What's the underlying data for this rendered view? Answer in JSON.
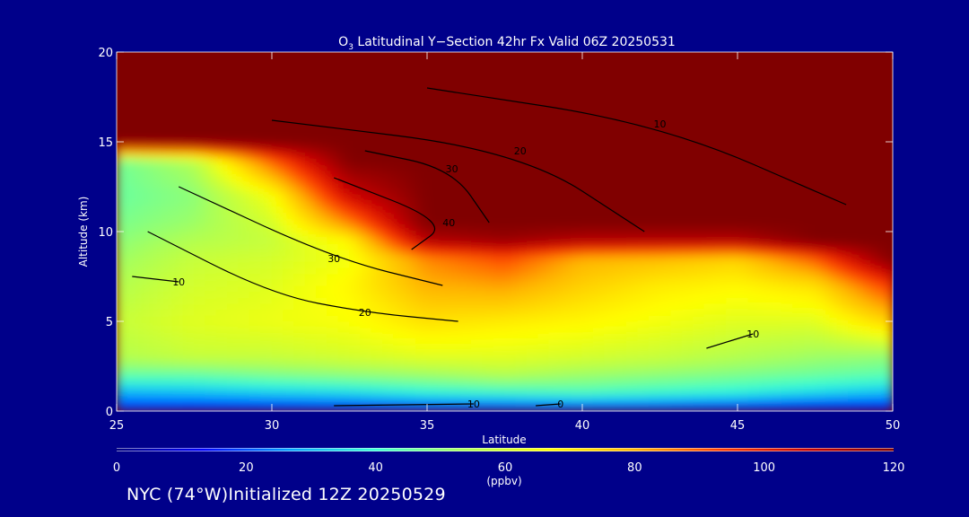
{
  "chart_data": {
    "type": "heatmap",
    "title": {
      "prefix": "O",
      "sub": "3",
      "rest": " Latitudinal Y−Section 42hr  Fx Valid 06Z 20250531"
    },
    "xlabel": "Latitude",
    "ylabel": "Altitude (km)",
    "xlim": [
      25,
      50
    ],
    "ylim": [
      0,
      20
    ],
    "xticks": [
      "25",
      "30",
      "35",
      "40",
      "45",
      "50"
    ],
    "yticks": [
      "0",
      "5",
      "10",
      "15",
      "20"
    ],
    "grid": false,
    "field": {
      "variable": "O3",
      "units": "ppbv",
      "x": [
        25,
        27.5,
        30,
        32.5,
        35,
        37.5,
        40,
        42.5,
        45,
        47.5,
        50
      ],
      "y": [
        0,
        1,
        2,
        3,
        5,
        7,
        8.5,
        9.5,
        10.5,
        12,
        14,
        15,
        20
      ],
      "values": [
        [
          15,
          12,
          12,
          12,
          12,
          12,
          12,
          12,
          10,
          8,
          8
        ],
        [
          28,
          30,
          32,
          34,
          38,
          40,
          42,
          40,
          38,
          34,
          30
        ],
        [
          45,
          45,
          48,
          50,
          52,
          55,
          52,
          50,
          48,
          46,
          44
        ],
        [
          55,
          58,
          58,
          60,
          62,
          62,
          60,
          58,
          55,
          52,
          50
        ],
        [
          58,
          62,
          64,
          66,
          72,
          70,
          68,
          65,
          62,
          62,
          75
        ],
        [
          55,
          60,
          62,
          68,
          80,
          82,
          75,
          70,
          68,
          72,
          95
        ],
        [
          52,
          58,
          60,
          65,
          85,
          92,
          80,
          78,
          75,
          90,
          120
        ],
        [
          50,
          55,
          58,
          68,
          110,
          115,
          110,
          110,
          110,
          120,
          120
        ],
        [
          48,
          52,
          60,
          85,
          120,
          120,
          120,
          120,
          120,
          120,
          120
        ],
        [
          46,
          50,
          65,
          105,
          120,
          120,
          120,
          120,
          120,
          120,
          120
        ],
        [
          47,
          55,
          90,
          120,
          120,
          120,
          120,
          120,
          120,
          120,
          120
        ],
        [
          120,
          120,
          120,
          120,
          120,
          120,
          120,
          120,
          120,
          120,
          120
        ],
        [
          120,
          120,
          120,
          120,
          120,
          120,
          120,
          120,
          120,
          120,
          120
        ]
      ]
    },
    "contours": [
      {
        "label": "0",
        "points": [
          [
            38.5,
            0.3
          ],
          [
            39.3,
            0.4
          ]
        ]
      },
      {
        "label": "10",
        "points": [
          [
            32,
            0.3
          ],
          [
            36.5,
            0.4
          ]
        ]
      },
      {
        "label": "10",
        "points": [
          [
            44,
            3.5
          ],
          [
            45.5,
            4.3
          ]
        ]
      },
      {
        "label": "10",
        "points": [
          [
            25.5,
            7.5
          ],
          [
            27,
            7.2
          ]
        ]
      },
      {
        "label": "20",
        "points": [
          [
            26,
            10
          ],
          [
            30,
            6.5
          ],
          [
            33,
            5.5
          ],
          [
            36,
            5
          ]
        ]
      },
      {
        "label": "30",
        "points": [
          [
            27,
            12.5
          ],
          [
            32,
            8.5
          ],
          [
            35.5,
            7
          ]
        ]
      },
      {
        "label": "40",
        "points": [
          [
            32,
            13
          ],
          [
            35.7,
            10.5
          ],
          [
            34.5,
            9
          ]
        ]
      },
      {
        "label": "30",
        "points": [
          [
            33,
            14.5
          ],
          [
            35.8,
            13.5
          ],
          [
            37,
            10.5
          ]
        ]
      },
      {
        "label": "20",
        "points": [
          [
            30,
            16.2
          ],
          [
            38,
            14.5
          ],
          [
            42,
            10
          ]
        ]
      },
      {
        "label": "10",
        "points": [
          [
            35,
            18
          ],
          [
            42.5,
            16
          ],
          [
            48.5,
            11.5
          ]
        ]
      }
    ],
    "colorbar": {
      "min": 0,
      "max": 120,
      "ticks": [
        "0",
        "20",
        "40",
        "60",
        "80",
        "100",
        "120"
      ],
      "label": "(ppbv)"
    },
    "colormap": [
      "#000080",
      "#0000ff",
      "#00a0ff",
      "#36ffd6",
      "#a8ff5a",
      "#ffff00",
      "#ffb400",
      "#ff3c00",
      "#c80000",
      "#800000"
    ],
    "colors": {
      "background": "#00008a",
      "text": "#ffffff",
      "contour": "#000000"
    }
  },
  "footer": {
    "text": "NYC (74°W)Initialized 12Z 20250529"
  }
}
